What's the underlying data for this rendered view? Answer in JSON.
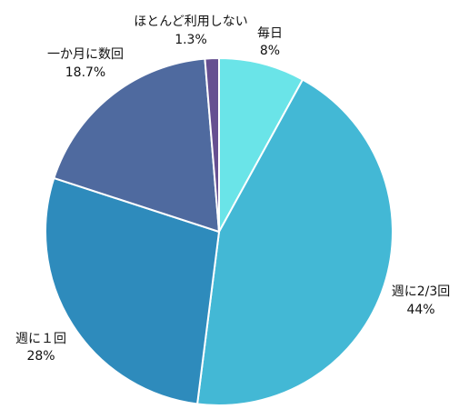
{
  "chart_data": {
    "type": "pie",
    "start": "12 o'clock",
    "direction": "clockwise",
    "slices": [
      {
        "label": "毎日",
        "value_text": "8%",
        "value": 8,
        "color": "#6ae4e8"
      },
      {
        "label": "週に2/3回",
        "value_text": "44%",
        "value": 44,
        "color": "#43b8d5"
      },
      {
        "label": "週に１回",
        "value_text": "28%",
        "value": 28,
        "color": "#2e8bbc"
      },
      {
        "label": "一か月に数回",
        "value_text": "18.7%",
        "value": 18.7,
        "color": "#4f6a9f"
      },
      {
        "label": "ほとんど利用しない",
        "value_text": "1.3%",
        "value": 1.3,
        "color": "#664f91"
      }
    ]
  }
}
